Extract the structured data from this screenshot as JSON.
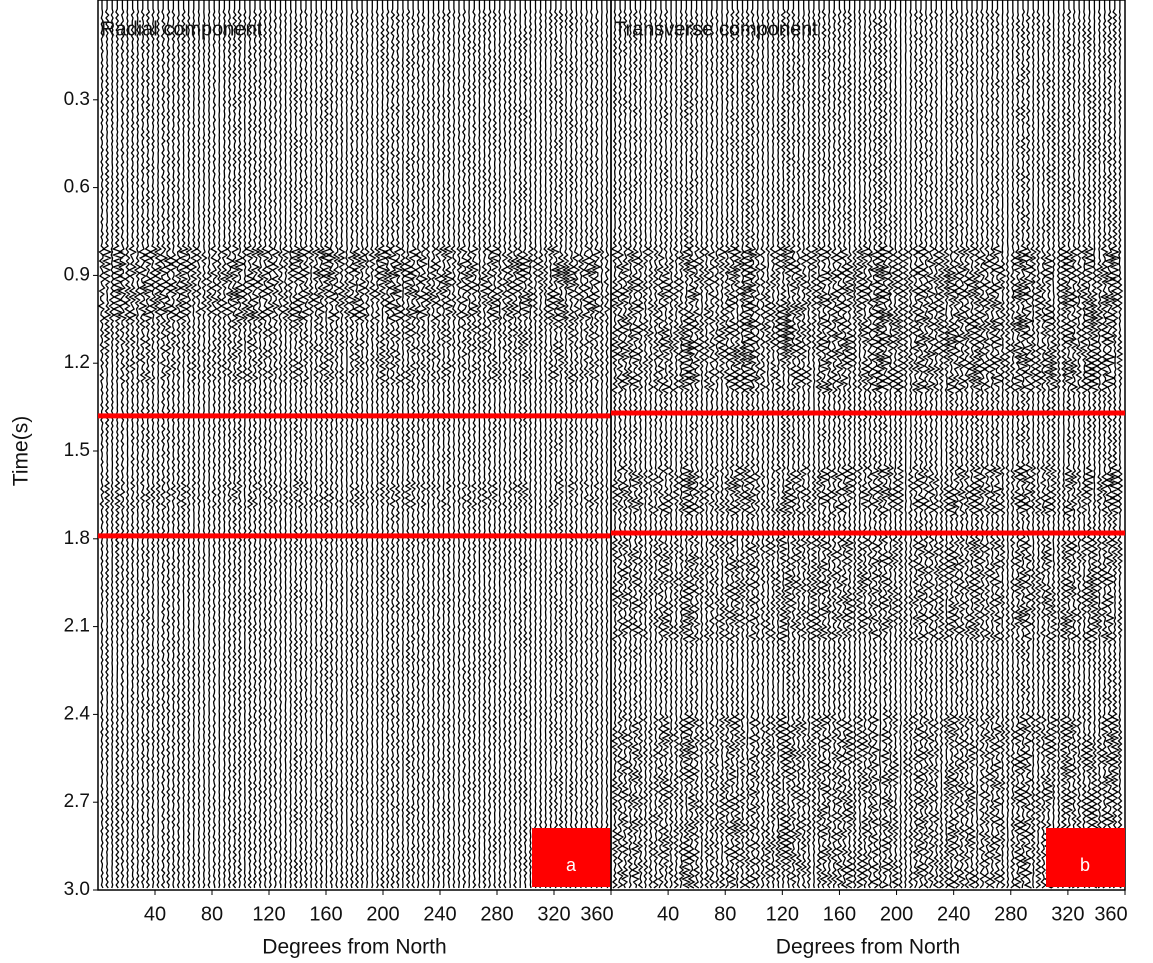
{
  "chart_data": [
    {
      "type": "wiggle",
      "title": "Radial component",
      "xlabel": "Degrees from North",
      "ylabel": "Time(s)",
      "xlim": [
        0,
        360
      ],
      "xticks": [
        40,
        80,
        120,
        160,
        200,
        240,
        280,
        320,
        360
      ],
      "ylim": [
        0,
        3.0
      ],
      "yticks": [
        {
          "value": 0.3,
          "label": "0.3"
        },
        {
          "value": 0.6,
          "label": "0.6"
        },
        {
          "value": 0.9,
          "label": "0.9"
        },
        {
          "value": 1.2,
          "label": "1.2"
        },
        {
          "value": 1.5,
          "label": "1.5"
        },
        {
          "value": 1.8,
          "label": "1.8"
        },
        {
          "value": 2.1,
          "label": "2.1"
        },
        {
          "value": 2.4,
          "label": "2.4"
        },
        {
          "value": 2.7,
          "label": "2.7"
        },
        {
          "value": 3.0,
          "label": "3.0"
        }
      ],
      "hlines": [
        1.38,
        1.79
      ],
      "hline_color": "#ff0000",
      "panel_label": "a",
      "panel_label_color": "#ff0000"
    },
    {
      "type": "wiggle",
      "title": "Transverse component",
      "xlabel": "Degrees from North",
      "xlim": [
        0,
        360
      ],
      "xticks": [
        40,
        80,
        120,
        160,
        200,
        240,
        280,
        320,
        360
      ],
      "ylim": [
        0,
        3.0
      ],
      "hlines": [
        1.37,
        1.78
      ],
      "hline_color": "#ff0000",
      "panel_label": "b",
      "panel_label_color": "#ff0000"
    }
  ]
}
